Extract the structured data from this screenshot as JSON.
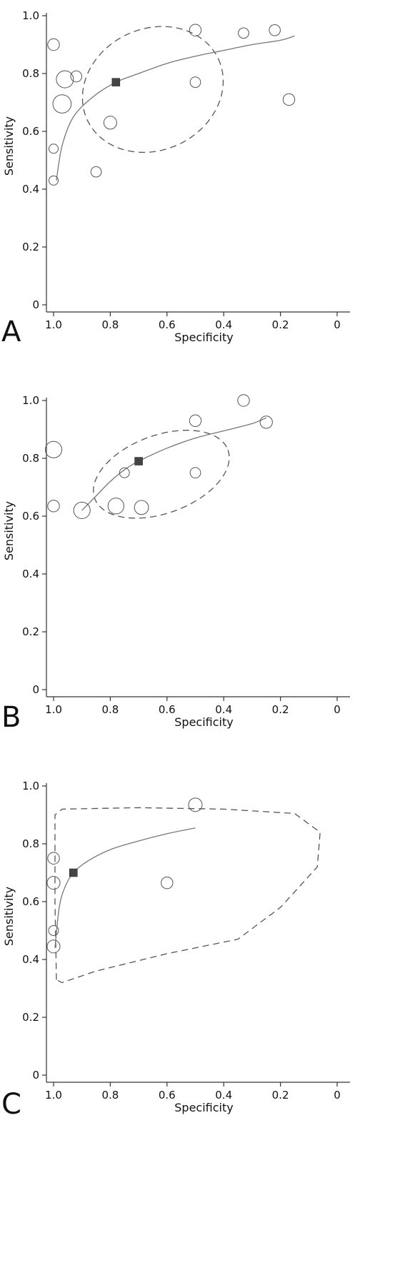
{
  "chart_data": [
    {
      "type": "scatter",
      "panel_label": "A",
      "xlabel": "Specificity",
      "ylabel": "Sensitivity",
      "x_reversed": true,
      "xlim": [
        1.0,
        0.0
      ],
      "ylim": [
        0.0,
        1.0
      ],
      "x_ticks": [
        "1.0",
        "0.8",
        "0.6",
        "0.4",
        "0.2",
        "0"
      ],
      "y_ticks": [
        "0",
        "0.2",
        "0.4",
        "0.6",
        "0.8",
        "1.0"
      ],
      "grid": false,
      "studies": [
        {
          "specificity": 1.0,
          "sensitivity": 0.9,
          "weight": 1.0
        },
        {
          "specificity": 1.0,
          "sensitivity": 0.54,
          "weight": 0.6
        },
        {
          "specificity": 1.0,
          "sensitivity": 0.43,
          "weight": 0.6
        },
        {
          "specificity": 0.96,
          "sensitivity": 0.78,
          "weight": 1.9
        },
        {
          "specificity": 0.97,
          "sensitivity": 0.695,
          "weight": 2.1
        },
        {
          "specificity": 0.92,
          "sensitivity": 0.79,
          "weight": 0.9
        },
        {
          "specificity": 0.85,
          "sensitivity": 0.46,
          "weight": 0.8
        },
        {
          "specificity": 0.8,
          "sensitivity": 0.63,
          "weight": 1.2
        },
        {
          "specificity": 0.5,
          "sensitivity": 0.95,
          "weight": 1.0
        },
        {
          "specificity": 0.5,
          "sensitivity": 0.77,
          "weight": 0.8
        },
        {
          "specificity": 0.33,
          "sensitivity": 0.94,
          "weight": 0.8
        },
        {
          "specificity": 0.22,
          "sensitivity": 0.95,
          "weight": 0.9
        },
        {
          "specificity": 0.17,
          "sensitivity": 0.71,
          "weight": 1.0
        }
      ],
      "summary_point": {
        "specificity": 0.78,
        "sensitivity": 0.77
      },
      "sroc_curve": [
        [
          0.99,
          0.43
        ],
        [
          0.97,
          0.55
        ],
        [
          0.93,
          0.65
        ],
        [
          0.86,
          0.72
        ],
        [
          0.78,
          0.77
        ],
        [
          0.7,
          0.8
        ],
        [
          0.6,
          0.835
        ],
        [
          0.5,
          0.86
        ],
        [
          0.4,
          0.88
        ],
        [
          0.3,
          0.9
        ],
        [
          0.2,
          0.915
        ],
        [
          0.15,
          0.93
        ]
      ],
      "confidence_region": {
        "center": [
          0.65,
          0.745
        ],
        "rx": 0.255,
        "ry": 0.21,
        "rotation_deg": -25
      }
    },
    {
      "type": "scatter",
      "panel_label": "B",
      "xlabel": "Specificity",
      "ylabel": "Sensitivity",
      "x_reversed": true,
      "xlim": [
        1.0,
        0.0
      ],
      "ylim": [
        0.0,
        1.0
      ],
      "x_ticks": [
        "1.0",
        "0.8",
        "0.6",
        "0.4",
        "0.2",
        "0"
      ],
      "y_ticks": [
        "0",
        "0.2",
        "0.4",
        "0.6",
        "0.8",
        "1.0"
      ],
      "grid": false,
      "studies": [
        {
          "specificity": 1.0,
          "sensitivity": 0.83,
          "weight": 1.8
        },
        {
          "specificity": 1.0,
          "sensitivity": 0.635,
          "weight": 1.0
        },
        {
          "specificity": 0.9,
          "sensitivity": 0.62,
          "weight": 1.8
        },
        {
          "specificity": 0.78,
          "sensitivity": 0.635,
          "weight": 1.7
        },
        {
          "specificity": 0.75,
          "sensitivity": 0.75,
          "weight": 0.7
        },
        {
          "specificity": 0.69,
          "sensitivity": 0.63,
          "weight": 1.4
        },
        {
          "specificity": 0.5,
          "sensitivity": 0.93,
          "weight": 1.0
        },
        {
          "specificity": 0.5,
          "sensitivity": 0.75,
          "weight": 0.8
        },
        {
          "specificity": 0.33,
          "sensitivity": 1.0,
          "weight": 1.0
        },
        {
          "specificity": 0.25,
          "sensitivity": 0.925,
          "weight": 1.1
        }
      ],
      "summary_point": {
        "specificity": 0.7,
        "sensitivity": 0.79
      },
      "sroc_curve": [
        [
          0.9,
          0.62
        ],
        [
          0.85,
          0.67
        ],
        [
          0.8,
          0.72
        ],
        [
          0.75,
          0.76
        ],
        [
          0.7,
          0.79
        ],
        [
          0.6,
          0.835
        ],
        [
          0.5,
          0.87
        ],
        [
          0.4,
          0.895
        ],
        [
          0.3,
          0.92
        ],
        [
          0.25,
          0.94
        ]
      ],
      "confidence_region": {
        "center": [
          0.62,
          0.745
        ],
        "rx": 0.25,
        "ry": 0.135,
        "rotation_deg": -20
      }
    },
    {
      "type": "scatter",
      "panel_label": "C",
      "xlabel": "Specificity",
      "ylabel": "Sensitivity",
      "x_reversed": true,
      "xlim": [
        1.0,
        0.0
      ],
      "ylim": [
        0.0,
        1.0
      ],
      "x_ticks": [
        "1.0",
        "0.8",
        "0.6",
        "0.4",
        "0.2",
        "0"
      ],
      "y_ticks": [
        "0",
        "0.2",
        "0.4",
        "0.6",
        "0.8",
        "1.0"
      ],
      "grid": false,
      "studies": [
        {
          "specificity": 1.0,
          "sensitivity": 0.75,
          "weight": 1.0
        },
        {
          "specificity": 1.0,
          "sensitivity": 0.665,
          "weight": 1.2
        },
        {
          "specificity": 1.0,
          "sensitivity": 0.5,
          "weight": 0.7
        },
        {
          "specificity": 1.0,
          "sensitivity": 0.445,
          "weight": 1.2
        },
        {
          "specificity": 0.6,
          "sensitivity": 0.665,
          "weight": 1.0
        },
        {
          "specificity": 0.5,
          "sensitivity": 0.935,
          "weight": 1.3
        }
      ],
      "summary_point": {
        "specificity": 0.93,
        "sensitivity": 0.7
      },
      "sroc_curve": [
        [
          0.995,
          0.44
        ],
        [
          0.98,
          0.58
        ],
        [
          0.96,
          0.65
        ],
        [
          0.93,
          0.7
        ],
        [
          0.88,
          0.74
        ],
        [
          0.8,
          0.78
        ],
        [
          0.7,
          0.81
        ],
        [
          0.6,
          0.835
        ],
        [
          0.5,
          0.855
        ]
      ],
      "confidence_region_path": [
        [
          0.99,
          0.33
        ],
        [
          0.995,
          0.6
        ],
        [
          0.995,
          0.9
        ],
        [
          0.97,
          0.92
        ],
        [
          0.7,
          0.925
        ],
        [
          0.4,
          0.92
        ],
        [
          0.15,
          0.905
        ],
        [
          0.06,
          0.84
        ],
        [
          0.07,
          0.72
        ],
        [
          0.2,
          0.58
        ],
        [
          0.35,
          0.47
        ],
        [
          0.6,
          0.42
        ],
        [
          0.85,
          0.36
        ],
        [
          0.97,
          0.32
        ]
      ]
    }
  ]
}
